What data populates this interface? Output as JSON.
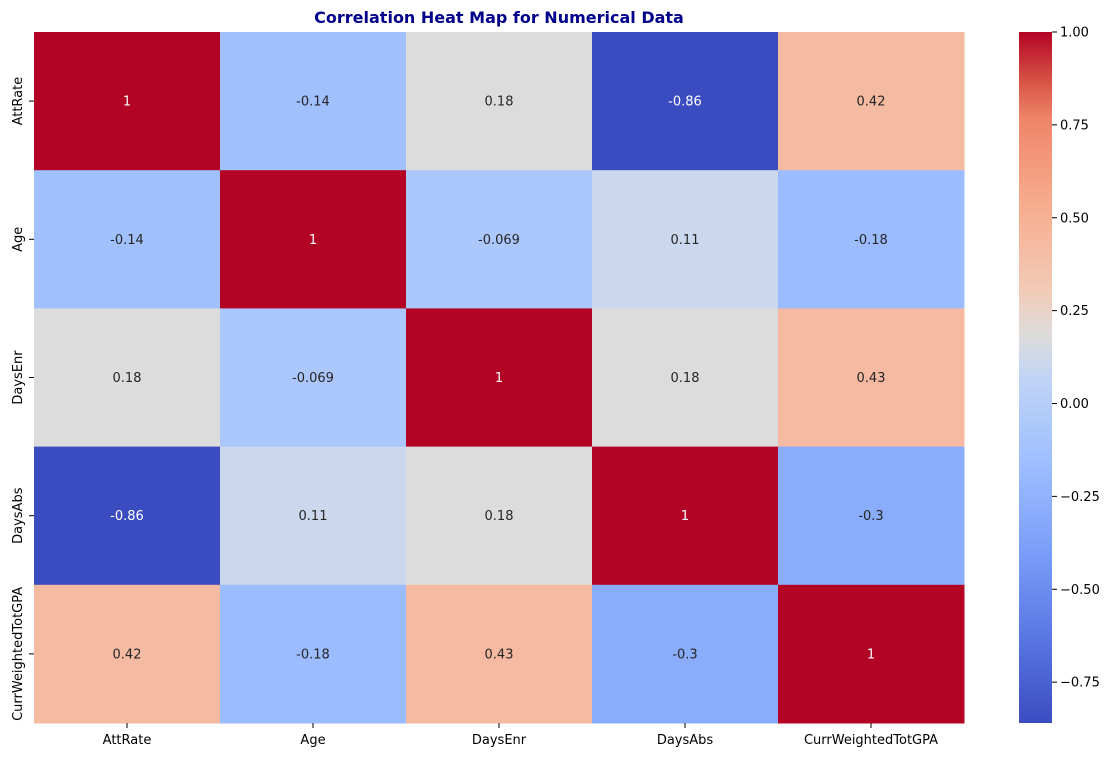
{
  "chart_data": {
    "type": "heatmap",
    "title": "Correlation Heat Map for Numerical Data",
    "title_color": "#00008B",
    "labels": [
      "AttRate",
      "Age",
      "DaysEnr",
      "DaysAbs",
      "CurrWeightedTotGPA"
    ],
    "matrix": [
      [
        1,
        -0.14,
        0.18,
        -0.86,
        0.42
      ],
      [
        -0.14,
        1,
        -0.069,
        0.11,
        -0.18
      ],
      [
        0.18,
        -0.069,
        1,
        0.18,
        0.43
      ],
      [
        -0.86,
        0.11,
        0.18,
        1,
        -0.3
      ],
      [
        0.42,
        -0.18,
        0.43,
        -0.3,
        1
      ]
    ],
    "cell_text": [
      [
        "1",
        "-0.14",
        "0.18",
        "-0.86",
        "0.42"
      ],
      [
        "-0.14",
        "1",
        "-0.069",
        "0.11",
        "-0.18"
      ],
      [
        "0.18",
        "-0.069",
        "1",
        "0.18",
        "0.43"
      ],
      [
        "-0.86",
        "0.11",
        "0.18",
        "1",
        "-0.3"
      ],
      [
        "0.42",
        "-0.18",
        "0.43",
        "-0.3",
        "1"
      ]
    ],
    "colormap": "coolwarm",
    "vmin": -0.86,
    "vmax": 1.0,
    "colorbar_ticks": [
      "1.00",
      "0.75",
      "0.50",
      "0.25",
      "0.00",
      "−0.25",
      "−0.50",
      "−0.75"
    ],
    "colorbar_tick_values": [
      1.0,
      0.75,
      0.5,
      0.25,
      0.0,
      -0.25,
      -0.5,
      -0.75
    ],
    "legend": "colorbar-right"
  }
}
